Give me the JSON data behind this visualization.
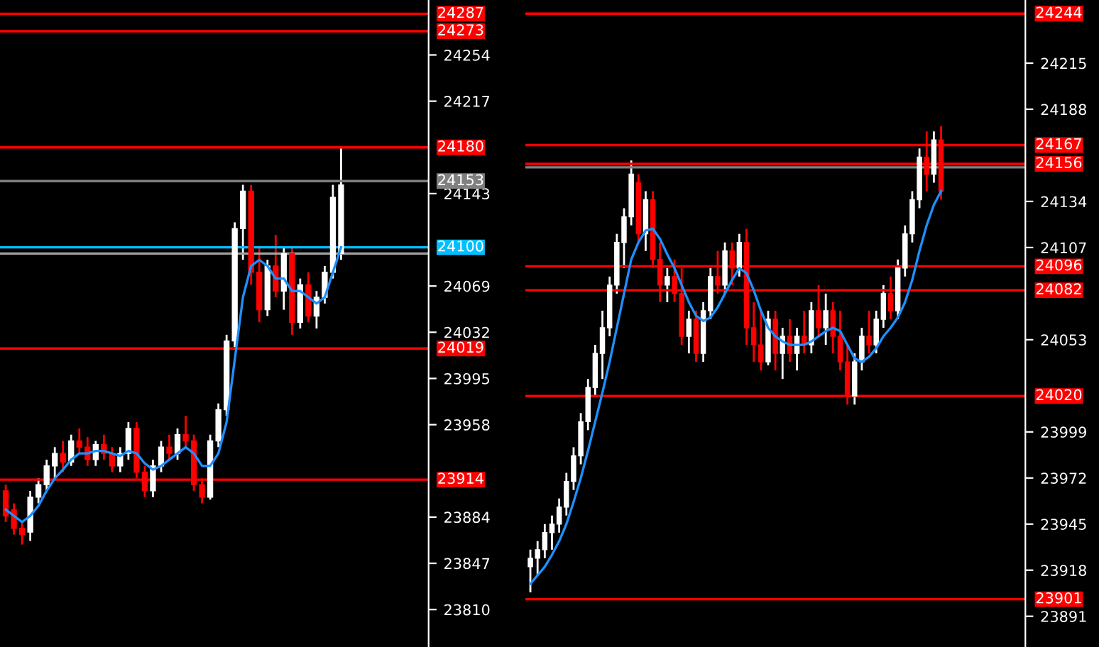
{
  "chart_data": [
    {
      "type": "candlestick",
      "tick_labels": "y",
      "grid": false,
      "legend": false,
      "categories": [
        null,
        null,
        null,
        null,
        null,
        null,
        null,
        null,
        null,
        null,
        null,
        null,
        null,
        null,
        null,
        null,
        null,
        null,
        null,
        null,
        null,
        null,
        null,
        null,
        null,
        null,
        null,
        null,
        null,
        null,
        null,
        null,
        null,
        null,
        null,
        null,
        null,
        null,
        null,
        null,
        null,
        null,
        null,
        null,
        null,
        null,
        null,
        null,
        null,
        null,
        null,
        null
      ],
      "ohlc": [
        [
          23905,
          23910,
          23880,
          23885
        ],
        [
          23890,
          23895,
          23870,
          23875
        ],
        [
          23875,
          23880,
          23862,
          23870
        ],
        [
          23872,
          23905,
          23865,
          23900
        ],
        [
          23900,
          23915,
          23895,
          23910
        ],
        [
          23910,
          23930,
          23905,
          23925
        ],
        [
          23925,
          23940,
          23915,
          23935
        ],
        [
          23935,
          23945,
          23920,
          23928
        ],
        [
          23928,
          23950,
          23925,
          23945
        ],
        [
          23945,
          23955,
          23935,
          23940
        ],
        [
          23940,
          23948,
          23925,
          23930
        ],
        [
          23930,
          23945,
          23925,
          23942
        ],
        [
          23942,
          23950,
          23930,
          23935
        ],
        [
          23935,
          23940,
          23920,
          23925
        ],
        [
          23925,
          23940,
          23920,
          23935
        ],
        [
          23935,
          23960,
          23930,
          23955
        ],
        [
          23955,
          23960,
          23915,
          23920
        ],
        [
          23920,
          23925,
          23900,
          23905
        ],
        [
          23905,
          23930,
          23900,
          23925
        ],
        [
          23925,
          23945,
          23920,
          23940
        ],
        [
          23940,
          23950,
          23930,
          23935
        ],
        [
          23935,
          23955,
          23930,
          23950
        ],
        [
          23950,
          23965,
          23940,
          23945
        ],
        [
          23945,
          23950,
          23905,
          23910
        ],
        [
          23910,
          23915,
          23895,
          23900
        ],
        [
          23900,
          23950,
          23898,
          23945
        ],
        [
          23945,
          23975,
          23940,
          23970
        ],
        [
          23970,
          24030,
          23965,
          24025
        ],
        [
          24025,
          24120,
          24020,
          24115
        ],
        [
          24115,
          24150,
          24090,
          24145
        ],
        [
          24145,
          24150,
          24070,
          24080
        ],
        [
          24080,
          24100,
          24040,
          24050
        ],
        [
          24050,
          24090,
          24045,
          24085
        ],
        [
          24085,
          24110,
          24060,
          24065
        ],
        [
          24065,
          24100,
          24050,
          24095
        ],
        [
          24095,
          24100,
          24030,
          24040
        ],
        [
          24040,
          24075,
          24035,
          24070
        ],
        [
          24070,
          24080,
          24040,
          24045
        ],
        [
          24045,
          24065,
          24035,
          24060
        ],
        [
          24060,
          24085,
          24055,
          24080
        ],
        [
          24080,
          24150,
          24075,
          24140
        ],
        [
          24095,
          24180,
          24090,
          24150
        ],
        null,
        null,
        null,
        null,
        null,
        null,
        null,
        null,
        null,
        null
      ],
      "series": [
        {
          "type": "line",
          "color": "#1e90ff",
          "values": [
            23890,
            23885,
            23880,
            23885,
            23893,
            23905,
            23915,
            23922,
            23930,
            23935,
            23935,
            23937,
            23937,
            23935,
            23933,
            23937,
            23935,
            23927,
            23922,
            23925,
            23930,
            23935,
            23940,
            23935,
            23925,
            23925,
            23935,
            23960,
            24010,
            24060,
            24085,
            24090,
            24085,
            24075,
            24075,
            24065,
            24065,
            24060,
            24055,
            24060,
            24080,
            24100,
            null,
            null,
            null,
            null,
            null,
            null,
            null,
            null,
            null,
            null
          ]
        }
      ],
      "ylim": [
        23780,
        24298
      ],
      "yticks": [
        24254,
        24217,
        24143,
        24069,
        24032,
        23995,
        23958,
        23884,
        23847,
        23810
      ],
      "ref_lines": [
        {
          "axis": "y",
          "value": 24287,
          "label": "24287",
          "color": "#ff0000"
        },
        {
          "axis": "y",
          "value": 24273,
          "label": "24273",
          "color": "#ff0000"
        },
        {
          "axis": "y",
          "value": 24180,
          "label": "24180",
          "color": "#ff0000"
        },
        {
          "axis": "y",
          "value": 24153,
          "label": "24153",
          "color": "#808080"
        },
        {
          "axis": "y",
          "value": 24095,
          "label": null,
          "color": "#a0a0a0"
        },
        {
          "axis": "y",
          "value": 24100,
          "label": "24100",
          "color": "#00bfff"
        },
        {
          "axis": "y",
          "value": 24019,
          "label": "24019",
          "color": "#ff0000"
        },
        {
          "axis": "y",
          "value": 23914,
          "label": "23914",
          "color": "#ff0000"
        }
      ]
    },
    {
      "type": "candlestick",
      "tick_labels": "y",
      "grid": false,
      "legend": false,
      "categories": [
        null,
        null,
        null,
        null,
        null,
        null,
        null,
        null,
        null,
        null,
        null,
        null,
        null,
        null,
        null,
        null,
        null,
        null,
        null,
        null,
        null,
        null,
        null,
        null,
        null,
        null,
        null,
        null,
        null,
        null,
        null,
        null,
        null,
        null,
        null,
        null,
        null,
        null,
        null,
        null,
        null,
        null,
        null,
        null,
        null,
        null,
        null,
        null,
        null,
        null,
        null,
        null,
        null,
        null,
        null,
        null,
        null,
        null,
        null,
        null,
        null,
        null,
        null,
        null,
        null,
        null,
        null,
        null,
        null
      ],
      "ohlc": [
        [
          23920,
          23930,
          23905,
          23925
        ],
        [
          23925,
          23935,
          23915,
          23930
        ],
        [
          23930,
          23945,
          23925,
          23940
        ],
        [
          23940,
          23950,
          23930,
          23945
        ],
        [
          23945,
          23960,
          23940,
          23955
        ],
        [
          23955,
          23975,
          23950,
          23970
        ],
        [
          23970,
          23990,
          23965,
          23985
        ],
        [
          23985,
          24010,
          23980,
          24005
        ],
        [
          24005,
          24030,
          24000,
          24025
        ],
        [
          24025,
          24050,
          24020,
          24045
        ],
        [
          24045,
          24070,
          24030,
          24060
        ],
        [
          24060,
          24090,
          24055,
          24085
        ],
        [
          24085,
          24115,
          24080,
          24110
        ],
        [
          24110,
          24130,
          24095,
          24125
        ],
        [
          24125,
          24158,
          24120,
          24150
        ],
        [
          24145,
          24150,
          24110,
          24115
        ],
        [
          24115,
          24140,
          24105,
          24135
        ],
        [
          24135,
          24140,
          24095,
          24100
        ],
        [
          24100,
          24110,
          24075,
          24085
        ],
        [
          24085,
          24095,
          24075,
          24090
        ],
        [
          24090,
          24100,
          24075,
          24080
        ],
        [
          24080,
          24095,
          24050,
          24055
        ],
        [
          24055,
          24070,
          24045,
          24065
        ],
        [
          24065,
          24070,
          24040,
          24045
        ],
        [
          24045,
          24075,
          24040,
          24070
        ],
        [
          24070,
          24095,
          24065,
          24090
        ],
        [
          24090,
          24105,
          24080,
          24085
        ],
        [
          24085,
          24110,
          24080,
          24105
        ],
        [
          24105,
          24110,
          24085,
          24095
        ],
        [
          24095,
          24115,
          24090,
          24110
        ],
        [
          24110,
          24118,
          24050,
          24060
        ],
        [
          24060,
          24075,
          24040,
          24050
        ],
        [
          24050,
          24070,
          24035,
          24040
        ],
        [
          24040,
          24070,
          24038,
          24065
        ],
        [
          24065,
          24070,
          24035,
          24045
        ],
        [
          24045,
          24060,
          24030,
          24055
        ],
        [
          24055,
          24065,
          24040,
          24045
        ],
        [
          24045,
          24060,
          24035,
          24055
        ],
        [
          24055,
          24070,
          24045,
          24050
        ],
        [
          24050,
          24075,
          24045,
          24070
        ],
        [
          24070,
          24085,
          24055,
          24060
        ],
        [
          24060,
          24080,
          24050,
          24070
        ],
        [
          24070,
          24075,
          24045,
          24055
        ],
        [
          24055,
          24070,
          24035,
          24040
        ],
        [
          24040,
          24050,
          24015,
          24020
        ],
        [
          24020,
          24045,
          24015,
          24040
        ],
        [
          24040,
          24060,
          24035,
          24055
        ],
        [
          24055,
          24070,
          24045,
          24050
        ],
        [
          24050,
          24070,
          24045,
          24065
        ],
        [
          24065,
          24085,
          24060,
          24080
        ],
        [
          24080,
          24090,
          24065,
          24070
        ],
        [
          24070,
          24100,
          24065,
          24095
        ],
        [
          24095,
          24120,
          24090,
          24115
        ],
        [
          24115,
          24140,
          24110,
          24135
        ],
        [
          24135,
          24165,
          24130,
          24160
        ],
        [
          24160,
          24175,
          24140,
          24150
        ],
        [
          24150,
          24175,
          24145,
          24170
        ],
        [
          24170,
          24178,
          24135,
          24140
        ],
        null,
        null,
        null,
        null,
        null,
        null,
        null,
        null,
        null,
        null,
        null
      ],
      "series": [
        {
          "type": "line",
          "color": "#1e90ff",
          "values": [
            23910,
            23915,
            23920,
            23927,
            23935,
            23945,
            23958,
            23972,
            23988,
            24005,
            24022,
            24040,
            24060,
            24080,
            24100,
            24110,
            24117,
            24118,
            24112,
            24103,
            24095,
            24085,
            24075,
            24067,
            24064,
            24066,
            24072,
            24080,
            24088,
            24095,
            24092,
            24082,
            24070,
            24060,
            24055,
            24052,
            24050,
            24050,
            24050,
            24052,
            24055,
            24058,
            24060,
            24058,
            24050,
            24042,
            24040,
            24043,
            24048,
            24055,
            24060,
            24066,
            24075,
            24088,
            24105,
            24120,
            24132,
            24140,
            null,
            null,
            null,
            null,
            null,
            null,
            null,
            null,
            null,
            null,
            null
          ]
        }
      ],
      "ylim": [
        23873,
        24252
      ],
      "yticks": [
        24215,
        24188,
        24134,
        24107,
        24053,
        23999,
        23972,
        23945,
        23918,
        23891
      ],
      "ref_lines": [
        {
          "axis": "y",
          "value": 24244,
          "label": "24244",
          "color": "#ff0000"
        },
        {
          "axis": "y",
          "value": 24154,
          "label": null,
          "color": "#808080"
        },
        {
          "axis": "y",
          "value": 24167,
          "label": "24167",
          "color": "#ff0000"
        },
        {
          "axis": "y",
          "value": 24156,
          "label": "24156",
          "color": "#ff0000"
        },
        {
          "axis": "y",
          "value": 24096,
          "label": "24096",
          "color": "#ff0000"
        },
        {
          "axis": "y",
          "value": 24082,
          "label": "24082",
          "color": "#ff0000"
        },
        {
          "axis": "y",
          "value": 24020,
          "label": "24020",
          "color": "#ff0000"
        },
        {
          "axis": "y",
          "value": 23901,
          "label": "23901",
          "color": "#ff0000"
        }
      ]
    }
  ]
}
